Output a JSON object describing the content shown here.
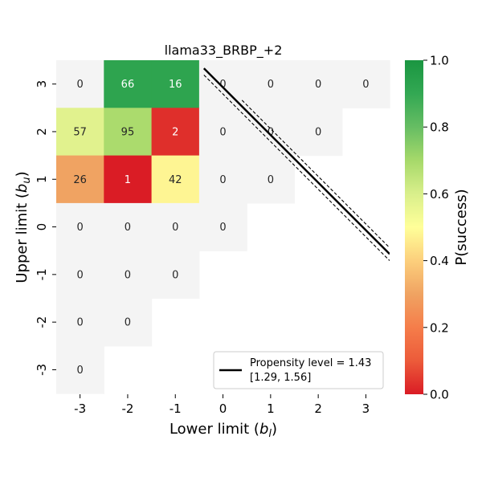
{
  "chart_data": {
    "type": "heatmap",
    "title": "llama33_BRBP_+2",
    "xlabel": "Lower limit ($b_l$)",
    "xlabel_main": "Lower limit (",
    "xlabel_var": "b",
    "xlabel_sub": "l",
    "xlabel_close": ")",
    "ylabel": "Upper limit ($b_u$)",
    "ylabel_main": "Upper limit (",
    "ylabel_var": "b",
    "ylabel_sub": "u",
    "ylabel_close": ")",
    "x_ticks": [
      "-3",
      "-2",
      "-1",
      "0",
      "1",
      "2",
      "3"
    ],
    "y_ticks": [
      "3",
      "2",
      "1",
      "0",
      "-1",
      "-2",
      "-3"
    ],
    "x_values": [
      -3,
      -2,
      -1,
      0,
      1,
      2,
      3
    ],
    "y_values": [
      3,
      2,
      1,
      0,
      -1,
      -2,
      -3
    ],
    "cells": [
      {
        "x": -3,
        "y": 3,
        "label": "0",
        "p": null
      },
      {
        "x": -2,
        "y": 3,
        "label": "66",
        "p": 0.92
      },
      {
        "x": -1,
        "y": 3,
        "label": "16",
        "p": 0.92
      },
      {
        "x": 0,
        "y": 3,
        "label": "0",
        "p": null
      },
      {
        "x": 1,
        "y": 3,
        "label": "0",
        "p": null
      },
      {
        "x": 2,
        "y": 3,
        "label": "0",
        "p": null
      },
      {
        "x": 3,
        "y": 3,
        "label": "0",
        "p": null
      },
      {
        "x": -3,
        "y": 2,
        "label": "57",
        "p": 0.58
      },
      {
        "x": -2,
        "y": 2,
        "label": "95",
        "p": 0.69
      },
      {
        "x": -1,
        "y": 2,
        "label": "2",
        "p": 0.03
      },
      {
        "x": 0,
        "y": 2,
        "label": "0",
        "p": null
      },
      {
        "x": 1,
        "y": 2,
        "label": "0",
        "p": null
      },
      {
        "x": 2,
        "y": 2,
        "label": "0",
        "p": null
      },
      {
        "x": -3,
        "y": 1,
        "label": "26",
        "p": 0.3
      },
      {
        "x": -2,
        "y": 1,
        "label": "1",
        "p": 0.0
      },
      {
        "x": -1,
        "y": 1,
        "label": "42",
        "p": 0.48
      },
      {
        "x": 0,
        "y": 1,
        "label": "0",
        "p": null
      },
      {
        "x": 1,
        "y": 1,
        "label": "0",
        "p": null
      },
      {
        "x": -3,
        "y": 0,
        "label": "0",
        "p": null
      },
      {
        "x": -2,
        "y": 0,
        "label": "0",
        "p": null
      },
      {
        "x": -1,
        "y": 0,
        "label": "0",
        "p": null
      },
      {
        "x": 0,
        "y": 0,
        "label": "0",
        "p": null
      },
      {
        "x": -3,
        "y": -1,
        "label": "0",
        "p": null
      },
      {
        "x": -2,
        "y": -1,
        "label": "0",
        "p": null
      },
      {
        "x": -1,
        "y": -1,
        "label": "0",
        "p": null
      },
      {
        "x": -3,
        "y": -2,
        "label": "0",
        "p": null
      },
      {
        "x": -2,
        "y": -2,
        "label": "0",
        "p": null
      },
      {
        "x": -3,
        "y": -3,
        "label": "0",
        "p": null
      }
    ],
    "empty_cell_color": "#f4f4f4",
    "light_text_threshold": 0.75,
    "propensity_line": {
      "intercept": 2.93,
      "slope": -1.0,
      "x_start": -0.4,
      "x_end": 3.5,
      "ci_low_intercept": 2.79,
      "ci_low_x_start": -0.4,
      "ci_high_intercept": 3.06,
      "ci_high_x_start": 0.4
    },
    "legend": {
      "label_line1": "Propensity level = 1.43",
      "label_line2": "[1.29, 1.56]",
      "placement": "lower-right"
    },
    "colorbar": {
      "label": "P(success)",
      "ticks": [
        "0.0",
        "0.2",
        "0.4",
        "0.6",
        "0.8",
        "1.0"
      ],
      "tick_values": [
        0.0,
        0.2,
        0.4,
        0.6,
        0.8,
        1.0
      ],
      "colormap": "RdYlGn",
      "range": [
        0.0,
        1.0
      ]
    }
  }
}
